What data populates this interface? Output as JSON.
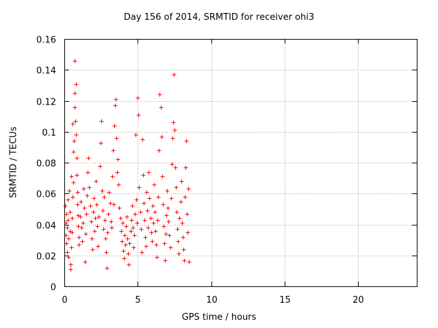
{
  "chart_data": {
    "type": "scatter",
    "title": "Day 156 of 2014, SRMTID for receiver ohi3",
    "xlabel": "GPS time / hours",
    "ylabel": "SRMTID / TECUs",
    "xlim": [
      0,
      24
    ],
    "ylim": [
      0,
      0.16
    ],
    "xticks": [
      0,
      5,
      10,
      15,
      20
    ],
    "xtick_labels": [
      "0",
      "5",
      "10",
      "15",
      "20"
    ],
    "yticks": [
      0,
      0.02,
      0.04,
      0.06,
      0.08,
      0.1,
      0.12,
      0.14,
      0.16
    ],
    "ytick_labels": [
      "0",
      "0.02",
      "0.04",
      "0.06",
      "0.08",
      "0.1",
      "0.12",
      "0.14",
      "0.16"
    ],
    "grid": true,
    "marker": "+",
    "color": "#ff0000",
    "series": [
      {
        "name": "SRMTID",
        "points": [
          [
            0.05,
            0.052
          ],
          [
            0.08,
            0.041
          ],
          [
            0.1,
            0.033
          ],
          [
            0.12,
            0.028
          ],
          [
            0.15,
            0.047
          ],
          [
            0.18,
            0.038
          ],
          [
            0.2,
            0.022
          ],
          [
            0.22,
            0.056
          ],
          [
            0.25,
            0.043
          ],
          [
            0.28,
            0.031
          ],
          [
            0.3,
            0.019
          ],
          [
            0.32,
            0.062
          ],
          [
            0.35,
            0.048
          ],
          [
            0.38,
            0.036
          ],
          [
            0.4,
            0.014
          ],
          [
            0.42,
            0.011
          ],
          [
            0.45,
            0.025
          ],
          [
            0.48,
            0.071
          ],
          [
            0.5,
            0.044
          ],
          [
            0.52,
            0.035
          ],
          [
            0.55,
            0.058
          ],
          [
            0.58,
            0.105
          ],
          [
            0.6,
            0.087
          ],
          [
            0.62,
            0.067
          ],
          [
            0.65,
            0.094
          ],
          [
            0.68,
            0.146
          ],
          [
            0.7,
            0.125
          ],
          [
            0.72,
            0.116
          ],
          [
            0.75,
            0.107
          ],
          [
            0.78,
            0.131
          ],
          [
            0.8,
            0.098
          ],
          [
            0.82,
            0.083
          ],
          [
            0.85,
            0.072
          ],
          [
            0.88,
            0.061
          ],
          [
            0.9,
            0.053
          ],
          [
            0.92,
            0.046
          ],
          [
            0.95,
            0.039
          ],
          [
            0.98,
            0.032
          ],
          [
            1.0,
            0.027
          ],
          [
            1.05,
            0.045
          ],
          [
            1.1,
            0.055
          ],
          [
            1.15,
            0.038
          ],
          [
            1.2,
            0.029
          ],
          [
            1.25,
            0.041
          ],
          [
            1.3,
            0.063
          ],
          [
            1.35,
            0.051
          ],
          [
            1.4,
            0.016
          ],
          [
            1.45,
            0.034
          ],
          [
            1.5,
            0.047
          ],
          [
            1.55,
            0.059
          ],
          [
            1.6,
            0.074
          ],
          [
            1.65,
            0.083
          ],
          [
            1.7,
            0.064
          ],
          [
            1.75,
            0.052
          ],
          [
            1.8,
            0.042
          ],
          [
            1.85,
            0.031
          ],
          [
            1.9,
            0.024
          ],
          [
            1.95,
            0.048
          ],
          [
            2.0,
            0.057
          ],
          [
            2.05,
            0.036
          ],
          [
            2.1,
            0.044
          ],
          [
            2.15,
            0.068
          ],
          [
            2.2,
            0.053
          ],
          [
            2.25,
            0.039
          ],
          [
            2.3,
            0.026
          ],
          [
            2.35,
            0.045
          ],
          [
            2.4,
            0.078
          ],
          [
            2.45,
            0.093
          ],
          [
            2.5,
            0.107
          ],
          [
            2.55,
            0.062
          ],
          [
            2.6,
            0.049
          ],
          [
            2.65,
            0.037
          ],
          [
            2.7,
            0.058
          ],
          [
            2.75,
            0.043
          ],
          [
            2.8,
            0.031
          ],
          [
            2.85,
            0.022
          ],
          [
            2.9,
            0.012
          ],
          [
            2.95,
            0.035
          ],
          [
            3.0,
            0.047
          ],
          [
            3.05,
            0.061
          ],
          [
            3.1,
            0.054
          ],
          [
            3.15,
            0.042
          ],
          [
            3.2,
            0.038
          ],
          [
            3.25,
            0.071
          ],
          [
            3.3,
            0.088
          ],
          [
            3.35,
            0.053
          ],
          [
            3.4,
            0.104
          ],
          [
            3.45,
            0.117
          ],
          [
            3.5,
            0.121
          ],
          [
            3.55,
            0.096
          ],
          [
            3.6,
            0.074
          ],
          [
            3.65,
            0.082
          ],
          [
            3.7,
            0.066
          ],
          [
            3.75,
            0.051
          ],
          [
            3.8,
            0.044
          ],
          [
            3.85,
            0.036
          ],
          [
            3.9,
            0.029
          ],
          [
            3.95,
            0.041
          ],
          [
            4.0,
            0.023
          ],
          [
            4.05,
            0.018
          ],
          [
            4.1,
            0.033
          ],
          [
            4.15,
            0.027
          ],
          [
            4.2,
            0.039
          ],
          [
            4.25,
            0.045
          ],
          [
            4.3,
            0.031
          ],
          [
            4.35,
            0.021
          ],
          [
            4.4,
            0.014
          ],
          [
            4.45,
            0.028
          ],
          [
            4.5,
            0.036
          ],
          [
            4.55,
            0.043
          ],
          [
            4.6,
            0.052
          ],
          [
            4.65,
            0.038
          ],
          [
            4.7,
            0.025
          ],
          [
            4.75,
            0.033
          ],
          [
            4.8,
            0.047
          ],
          [
            4.85,
            0.098
          ],
          [
            4.9,
            0.056
          ],
          [
            4.95,
            0.041
          ],
          [
            5.0,
            0.122
          ],
          [
            5.05,
            0.111
          ],
          [
            5.1,
            0.064
          ],
          [
            5.15,
            0.048
          ],
          [
            5.2,
            0.037
          ],
          [
            5.25,
            0.022
          ],
          [
            5.3,
            0.095
          ],
          [
            5.35,
            0.072
          ],
          [
            5.4,
            0.054
          ],
          [
            5.45,
            0.043
          ],
          [
            5.5,
            0.032
          ],
          [
            5.55,
            0.026
          ],
          [
            5.6,
            0.061
          ],
          [
            5.65,
            0.049
          ],
          [
            5.7,
            0.038
          ],
          [
            5.75,
            0.074
          ],
          [
            5.8,
            0.057
          ],
          [
            5.85,
            0.044
          ],
          [
            5.9,
            0.035
          ],
          [
            5.95,
            0.029
          ],
          [
            6.0,
            0.052
          ],
          [
            6.05,
            0.041
          ],
          [
            6.1,
            0.066
          ],
          [
            6.15,
            0.048
          ],
          [
            6.2,
            0.036
          ],
          [
            6.25,
            0.027
          ],
          [
            6.3,
            0.019
          ],
          [
            6.35,
            0.043
          ],
          [
            6.4,
            0.058
          ],
          [
            6.45,
            0.088
          ],
          [
            6.5,
            0.124
          ],
          [
            6.55,
            0.116
          ],
          [
            6.6,
            0.097
          ],
          [
            6.65,
            0.071
          ],
          [
            6.7,
            0.053
          ],
          [
            6.75,
            0.039
          ],
          [
            6.8,
            0.028
          ],
          [
            6.85,
            0.017
          ],
          [
            6.9,
            0.034
          ],
          [
            6.95,
            0.046
          ],
          [
            7.0,
            0.062
          ],
          [
            7.05,
            0.051
          ],
          [
            7.1,
            0.042
          ],
          [
            7.15,
            0.033
          ],
          [
            7.2,
            0.025
          ],
          [
            7.25,
            0.057
          ],
          [
            7.3,
            0.079
          ],
          [
            7.35,
            0.096
          ],
          [
            7.4,
            0.106
          ],
          [
            7.45,
            0.137
          ],
          [
            7.5,
            0.101
          ],
          [
            7.55,
            0.077
          ],
          [
            7.6,
            0.064
          ],
          [
            7.65,
            0.048
          ],
          [
            7.7,
            0.037
          ],
          [
            7.75,
            0.029
          ],
          [
            7.8,
            0.021
          ],
          [
            7.85,
            0.044
          ],
          [
            7.9,
            0.055
          ],
          [
            7.95,
            0.068
          ],
          [
            8.0,
            0.041
          ],
          [
            8.05,
            0.032
          ],
          [
            8.1,
            0.024
          ],
          [
            8.15,
            0.017
          ],
          [
            8.2,
            0.058
          ],
          [
            8.25,
            0.077
          ],
          [
            8.3,
            0.094
          ],
          [
            8.35,
            0.047
          ],
          [
            8.4,
            0.035
          ],
          [
            8.45,
            0.063
          ],
          [
            8.5,
            0.016
          ]
        ]
      }
    ]
  }
}
